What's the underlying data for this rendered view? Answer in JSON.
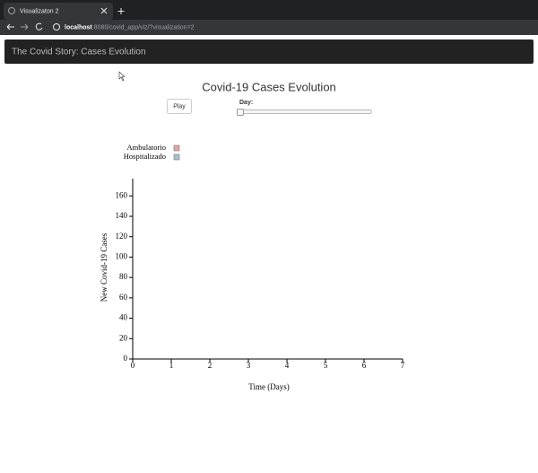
{
  "browser": {
    "tab_title": "Visualizaton 2",
    "url_host": "localhost",
    "url_path": ":8080/covid_app/viz/?visualization=2"
  },
  "navbar": {
    "title": "The Covid Story: Cases Evolution"
  },
  "controls": {
    "play": "Play",
    "slider_label": "Day:"
  },
  "chart_data": {
    "type": "line",
    "title": "Covid-19 Cases Evolution",
    "x_label": "Time (Days)",
    "y_label": "New Covid-19 Cases",
    "series": [
      {
        "name": "Ambulatorio",
        "color": "#e8a3a3"
      },
      {
        "name": "Hospitalizado",
        "color": "#a9bfd3"
      }
    ],
    "xlim": [
      0,
      7
    ],
    "xticks": [
      0,
      1,
      2,
      3,
      4,
      5,
      6,
      7
    ],
    "ylim": [
      0,
      177
    ],
    "yticks": [
      0,
      20,
      40,
      60,
      80,
      100,
      120,
      140,
      160
    ]
  }
}
